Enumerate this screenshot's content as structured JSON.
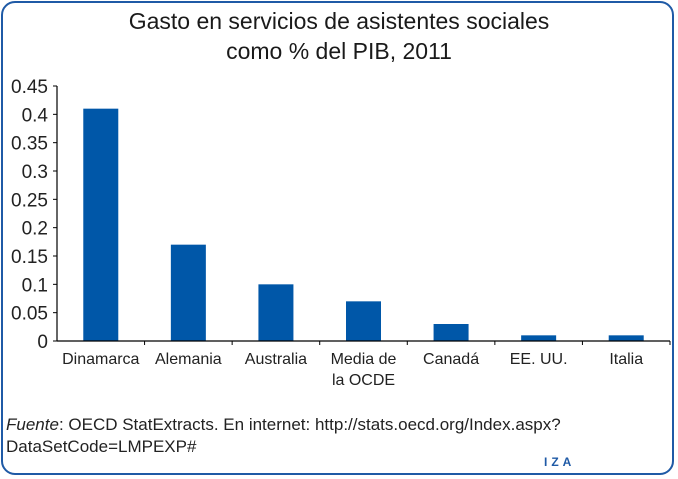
{
  "chart_data": {
    "type": "bar",
    "title": [
      "Gasto en servicios de asistentes sociales",
      "como % del PIB, 2011"
    ],
    "categories": [
      [
        "Dinamarca"
      ],
      [
        "Alemania"
      ],
      [
        "Australia"
      ],
      [
        "Media de",
        "la OCDE"
      ],
      [
        "Canadá"
      ],
      [
        "EE. UU."
      ],
      [
        "Italia"
      ]
    ],
    "values": [
      0.41,
      0.17,
      0.1,
      0.07,
      0.03,
      0.01,
      0.01
    ],
    "ylim": [
      0,
      0.45
    ],
    "yticks": [
      "0",
      "0.05",
      "0.1",
      "0.15",
      "0.2",
      "0.25",
      "0.3",
      "0.35",
      "0.4",
      "0.45"
    ],
    "xlabel": "",
    "ylabel": "",
    "grid": false,
    "bar_color": "#0057a8"
  },
  "source": {
    "label": "Fuente",
    "text": ": OECD StatExtracts. En internet: http://stats.oecd.org/Index.aspx?DataSetCode=LMPEXP#"
  },
  "logo": "IZA",
  "frame_color": "#1f5aa6"
}
